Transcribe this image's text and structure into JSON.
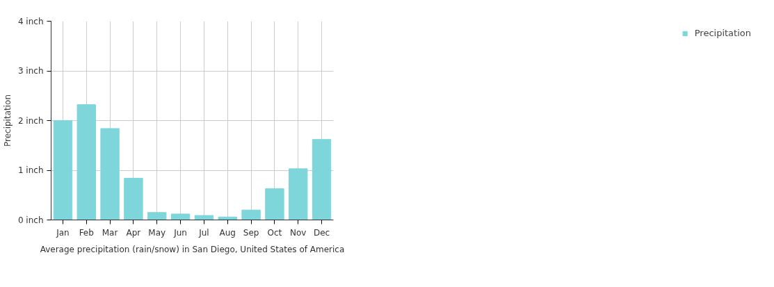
{
  "chart_data": {
    "type": "bar",
    "ylabel": "Precipitation",
    "categories": [
      "Jan",
      "Feb",
      "Mar",
      "Apr",
      "May",
      "Jun",
      "Jul",
      "Aug",
      "Sep",
      "Oct",
      "Nov",
      "Dec"
    ],
    "series": [
      {
        "name": "Precipitation",
        "color": "#7fd6da",
        "values": [
          2.0,
          2.32,
          1.84,
          0.84,
          0.15,
          0.12,
          0.09,
          0.06,
          0.2,
          0.63,
          1.03,
          1.62
        ]
      }
    ],
    "ylim": [
      0,
      4
    ],
    "yticks": [
      {
        "value": 0,
        "label": "0 inch"
      },
      {
        "value": 1,
        "label": "1 inch"
      },
      {
        "value": 2,
        "label": "2 inch"
      },
      {
        "value": 3,
        "label": "3 inch"
      },
      {
        "value": 4,
        "label": "4 inch"
      }
    ],
    "grid": true,
    "legend": "top right",
    "annotations": [
      "Average precipitation (rain/snow) in San Diego, United States of America"
    ]
  }
}
